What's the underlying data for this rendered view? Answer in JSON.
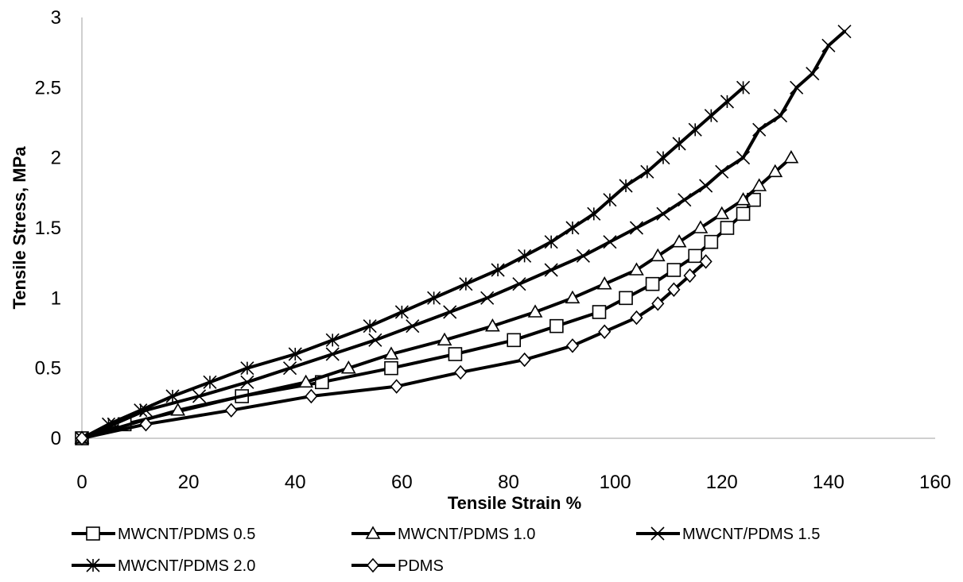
{
  "chart_data": {
    "type": "line",
    "title": "",
    "xlabel": "Tensile Strain %",
    "ylabel": "Tensile Stress, MPa",
    "xlim": [
      0,
      160
    ],
    "ylim": [
      0,
      3
    ],
    "x_ticks": [
      "0",
      "20",
      "40",
      "60",
      "80",
      "100",
      "120",
      "140",
      "160"
    ],
    "y_ticks": [
      "0",
      "0.5",
      "1",
      "1.5",
      "2",
      "2.5",
      "3"
    ],
    "grid": false,
    "legend_position": "bottom",
    "line_color": "#000000",
    "series": [
      {
        "name": "MWCNT/PDMS 0.5",
        "marker": "square",
        "x": [
          0,
          8,
          30,
          45,
          58,
          70,
          81,
          89,
          97,
          102,
          107,
          111,
          115,
          118,
          121,
          124,
          126
        ],
        "y": [
          0,
          0.1,
          0.3,
          0.4,
          0.5,
          0.6,
          0.7,
          0.8,
          0.9,
          1.0,
          1.1,
          1.2,
          1.3,
          1.4,
          1.5,
          1.6,
          1.7
        ]
      },
      {
        "name": "MWCNT/PDMS 1.0",
        "marker": "triangle",
        "x": [
          0,
          18,
          42,
          50,
          58,
          68,
          77,
          85,
          92,
          98,
          104,
          108,
          112,
          116,
          120,
          124,
          127,
          130,
          133
        ],
        "y": [
          0,
          0.2,
          0.4,
          0.5,
          0.6,
          0.7,
          0.8,
          0.9,
          1.0,
          1.1,
          1.2,
          1.3,
          1.4,
          1.5,
          1.6,
          1.7,
          1.8,
          1.9,
          2.0
        ]
      },
      {
        "name": "MWCNT/PDMS 1.5",
        "marker": "x",
        "x": [
          0,
          6,
          12,
          22,
          31,
          39,
          47,
          55,
          62,
          69,
          76,
          82,
          88,
          94,
          99,
          104,
          109,
          113,
          117,
          120,
          124,
          127,
          131,
          134,
          137,
          140,
          143
        ],
        "y": [
          0,
          0.1,
          0.2,
          0.3,
          0.4,
          0.5,
          0.6,
          0.7,
          0.8,
          0.9,
          1.0,
          1.1,
          1.2,
          1.3,
          1.4,
          1.5,
          1.6,
          1.7,
          1.8,
          1.9,
          2.0,
          2.2,
          2.3,
          2.5,
          2.6,
          2.8,
          2.9
        ]
      },
      {
        "name": "MWCNT/PDMS 2.0",
        "marker": "star",
        "x": [
          0,
          5,
          11,
          17,
          24,
          31,
          40,
          47,
          54,
          60,
          66,
          72,
          78,
          83,
          88,
          92,
          96,
          99,
          102,
          106,
          109,
          112,
          115,
          118,
          121,
          124
        ],
        "y": [
          0,
          0.1,
          0.2,
          0.3,
          0.4,
          0.5,
          0.6,
          0.7,
          0.8,
          0.9,
          1.0,
          1.1,
          1.2,
          1.3,
          1.4,
          1.5,
          1.6,
          1.7,
          1.8,
          1.9,
          2.0,
          2.1,
          2.2,
          2.3,
          2.4,
          2.5
        ]
      },
      {
        "name": "PDMS",
        "marker": "diamond",
        "x": [
          0,
          12,
          28,
          43,
          59,
          71,
          83,
          92,
          98,
          104,
          108,
          111,
          114,
          117
        ],
        "y": [
          0,
          0.1,
          0.2,
          0.3,
          0.37,
          0.47,
          0.56,
          0.66,
          0.76,
          0.86,
          0.96,
          1.06,
          1.16,
          1.26
        ]
      }
    ]
  }
}
